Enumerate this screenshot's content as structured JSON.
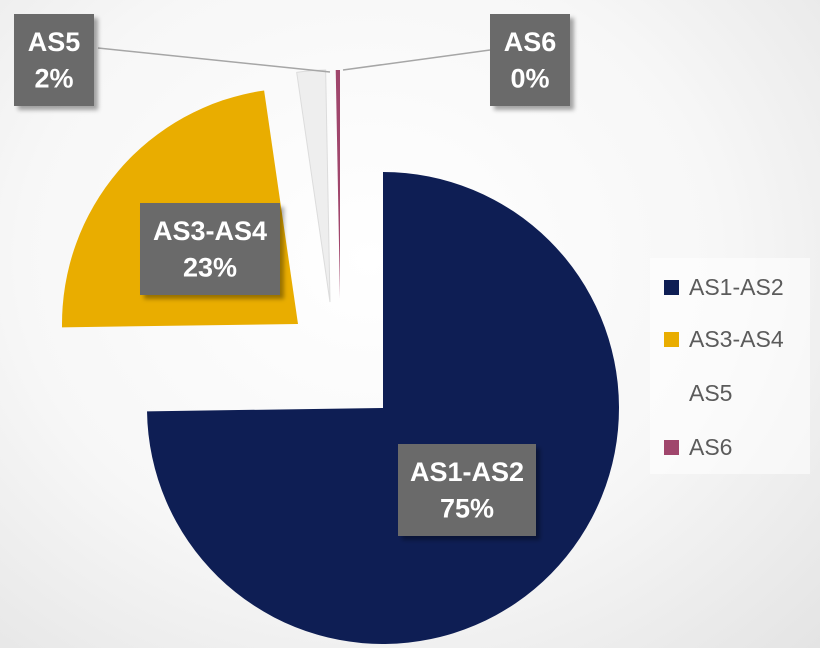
{
  "chart_data": {
    "type": "pie",
    "exploded": true,
    "slices": [
      {
        "label": "AS1-AS2",
        "value": 75,
        "pct_label": "75%",
        "color": "#0e1e54"
      },
      {
        "label": "AS3-AS4",
        "value": 23,
        "pct_label": "23%",
        "color": "#e9ad00"
      },
      {
        "label": "AS5",
        "value": 2,
        "pct_label": "2%",
        "color": "#eeeeee"
      },
      {
        "label": "AS6",
        "value": 0.3,
        "pct_label": "0%",
        "color": "#a0466c"
      }
    ],
    "legend": {
      "position": "right",
      "entries": [
        "AS1-AS2",
        "AS3-AS4",
        "AS5",
        "AS6"
      ]
    },
    "data_label_bg": "#6b6b6b",
    "data_label_color": "#ffffff"
  }
}
